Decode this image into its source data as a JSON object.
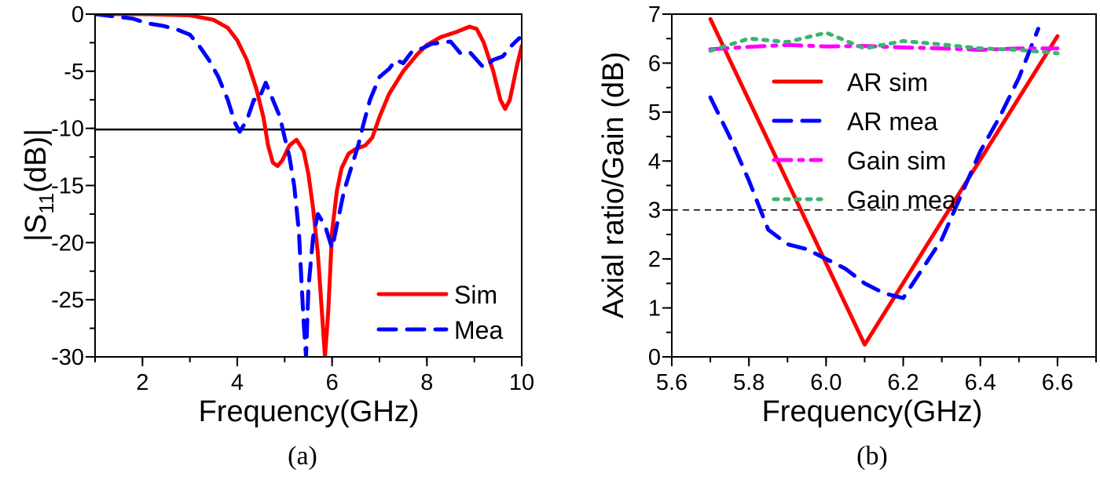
{
  "chart_data": [
    {
      "type": "line",
      "caption": "(a)",
      "xlabel": "Frequency(GHz)",
      "ylabel_main": "|S",
      "ylabel_sub": "11",
      "ylabel_tail": "(dB)|",
      "xlim": [
        1,
        10
      ],
      "ylim": [
        -30,
        0
      ],
      "xticks": [
        2,
        4,
        6,
        8,
        10
      ],
      "yticks": [
        0,
        -5,
        -10,
        -15,
        -20,
        -25,
        -30
      ],
      "grid": false,
      "legend_position": "bottom-right",
      "reference_line": {
        "y": -10.1,
        "style": "solid",
        "color": "#000000"
      },
      "series": [
        {
          "name": "Sim",
          "color": "#ff0000",
          "style": "solid",
          "x": [
            1,
            2,
            3,
            3.5,
            3.8,
            4.0,
            4.2,
            4.4,
            4.55,
            4.65,
            4.75,
            4.85,
            4.95,
            5.1,
            5.25,
            5.4,
            5.5,
            5.6,
            5.7,
            5.8,
            5.85,
            5.92,
            6.0,
            6.1,
            6.2,
            6.35,
            6.5,
            6.7,
            6.85,
            7.0,
            7.2,
            7.5,
            7.8,
            8.0,
            8.3,
            8.6,
            8.9,
            9.05,
            9.2,
            9.4,
            9.55,
            9.65,
            9.75,
            9.9,
            10
          ],
          "y": [
            0,
            0,
            -0.1,
            -0.5,
            -1.2,
            -2.3,
            -4,
            -6.5,
            -9,
            -11.5,
            -13,
            -13.3,
            -12.8,
            -11.5,
            -11,
            -12,
            -14,
            -17,
            -21,
            -27,
            -30,
            -26,
            -19,
            -15.5,
            -13.5,
            -12.2,
            -11.8,
            -11.5,
            -10.8,
            -9,
            -7,
            -5,
            -3.5,
            -2.7,
            -2,
            -1.6,
            -1.1,
            -1.3,
            -2.5,
            -5,
            -7.5,
            -8.3,
            -7.5,
            -4.5,
            -2.8
          ]
        },
        {
          "name": "Mea",
          "color": "#0000ff",
          "style": "dashed",
          "x": [
            1,
            1.4,
            1.8,
            2.1,
            2.4,
            2.7,
            3.0,
            3.2,
            3.4,
            3.6,
            3.8,
            3.95,
            4.05,
            4.2,
            4.35,
            4.45,
            4.6,
            4.75,
            4.9,
            5.0,
            5.1,
            5.2,
            5.3,
            5.35,
            5.4,
            5.45,
            5.5,
            5.6,
            5.7,
            5.85,
            6.0,
            6.1,
            6.25,
            6.4,
            6.55,
            6.65,
            6.8,
            7.0,
            7.2,
            7.35,
            7.5,
            7.7,
            7.9,
            8.1,
            8.3,
            8.5,
            8.7,
            8.9,
            9.05,
            9.2,
            9.4,
            9.6,
            9.8,
            9.95
          ],
          "y": [
            0,
            -0.2,
            -0.4,
            -0.8,
            -1,
            -1.3,
            -1.8,
            -2.8,
            -4,
            -5.5,
            -7.5,
            -9.5,
            -10.3,
            -9.3,
            -7.5,
            -7.5,
            -6,
            -7.5,
            -9,
            -10.8,
            -12.5,
            -15,
            -19,
            -23,
            -27,
            -30,
            -24,
            -19.5,
            -17.5,
            -18.5,
            -20.5,
            -18.5,
            -15.5,
            -13.5,
            -11.5,
            -9.8,
            -7.5,
            -5.5,
            -4.8,
            -4,
            -4.3,
            -3.2,
            -3,
            -2.6,
            -2.5,
            -2.4,
            -3.4,
            -3.3,
            -4,
            -4.7,
            -4,
            -3.7,
            -2.7,
            -2.1
          ]
        }
      ]
    },
    {
      "type": "line",
      "caption": "(b)",
      "xlabel": "Frequency(GHz)",
      "ylabel": "Axial ratio/Gain (dB)",
      "xlim": [
        5.6,
        6.7
      ],
      "ylim": [
        0,
        7
      ],
      "xticks": [
        "5.6",
        "5.8",
        "6.0",
        "6.2",
        "6.4",
        "6.6"
      ],
      "yticks": [
        0,
        1,
        2,
        3,
        4,
        5,
        6,
        7
      ],
      "grid": false,
      "legend_position": "top-center",
      "reference_line": {
        "y": 3,
        "style": "dashed",
        "color": "#000000"
      },
      "series": [
        {
          "name": "AR sim",
          "color": "#ff0000",
          "style": "solid",
          "x": [
            5.7,
            6.1,
            6.6
          ],
          "y": [
            6.9,
            0.25,
            6.55
          ]
        },
        {
          "name": "AR mea",
          "color": "#0000ff",
          "style": "dashed",
          "x": [
            5.7,
            5.75,
            5.8,
            5.85,
            5.9,
            5.95,
            6.0,
            6.05,
            6.1,
            6.15,
            6.2,
            6.25,
            6.3,
            6.35,
            6.4,
            6.45,
            6.5,
            6.55
          ],
          "y": [
            5.3,
            4.5,
            3.6,
            2.6,
            2.3,
            2.2,
            2.0,
            1.8,
            1.5,
            1.3,
            1.2,
            1.8,
            2.4,
            3.3,
            4.2,
            4.9,
            5.7,
            6.7
          ]
        },
        {
          "name": "Gain sim",
          "color": "#ff00ff",
          "style": "dashdot",
          "x": [
            5.7,
            5.8,
            5.9,
            6.0,
            6.1,
            6.2,
            6.3,
            6.4,
            6.5,
            6.6
          ],
          "y": [
            6.28,
            6.33,
            6.37,
            6.34,
            6.35,
            6.32,
            6.3,
            6.27,
            6.3,
            6.3
          ]
        },
        {
          "name": "Gain mea",
          "color": "#3cb371",
          "style": "dotted",
          "x": [
            5.7,
            5.8,
            5.9,
            6.0,
            6.1,
            6.2,
            6.3,
            6.4,
            6.5,
            6.6
          ],
          "y": [
            6.25,
            6.5,
            6.43,
            6.62,
            6.3,
            6.45,
            6.38,
            6.3,
            6.27,
            6.2
          ]
        }
      ]
    }
  ]
}
